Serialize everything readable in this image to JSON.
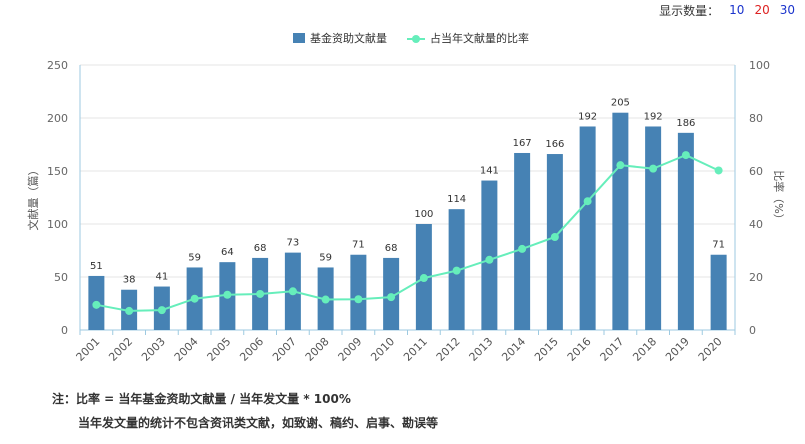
{
  "display_count": {
    "label": "显示数量：",
    "options": [
      {
        "label": "10",
        "color": "#1a33cc"
      },
      {
        "label": "20",
        "color": "#dd2222"
      },
      {
        "label": "30",
        "color": "#1a33cc"
      }
    ]
  },
  "notes": {
    "line1": "注：比率 = 当年基金资助文献量 / 当年发文量 * 100%",
    "line2": "当年发文量的统计不包含资讯类文献，如致谢、稿约、启事、勘误等"
  },
  "chart_data": {
    "type": "bar+line",
    "categories": [
      "2001",
      "2002",
      "2003",
      "2004",
      "2005",
      "2006",
      "2007",
      "2008",
      "2009",
      "2010",
      "2011",
      "2012",
      "2013",
      "2014",
      "2015",
      "2016",
      "2017",
      "2018",
      "2019",
      "2020"
    ],
    "series": [
      {
        "name": "基金资助文献量",
        "type": "bar",
        "axis": "left",
        "color": "#4682b4",
        "values": [
          51,
          38,
          41,
          59,
          64,
          68,
          73,
          59,
          71,
          68,
          100,
          114,
          141,
          167,
          166,
          192,
          205,
          192,
          186,
          71
        ]
      },
      {
        "name": "占当年文献量的比率",
        "type": "line",
        "axis": "right",
        "color": "#66eebb",
        "values": [
          9.5,
          7.2,
          7.5,
          11.8,
          13.3,
          13.6,
          14.6,
          11.5,
          11.6,
          12.4,
          19.6,
          22.4,
          26.5,
          30.6,
          35.1,
          48.6,
          62.2,
          60.9,
          66.0,
          60.2
        ]
      }
    ],
    "y_left": {
      "label": "文献量（篇）",
      "ticks": [
        "0",
        "50",
        "100",
        "150",
        "200",
        "250"
      ],
      "range": [
        0,
        250
      ]
    },
    "y_right": {
      "label": "比率（%）",
      "ticks": [
        "0",
        "20",
        "40",
        "60",
        "80",
        "100"
      ],
      "range": [
        0,
        100
      ]
    },
    "legend_position": "top-center",
    "grid": true
  }
}
